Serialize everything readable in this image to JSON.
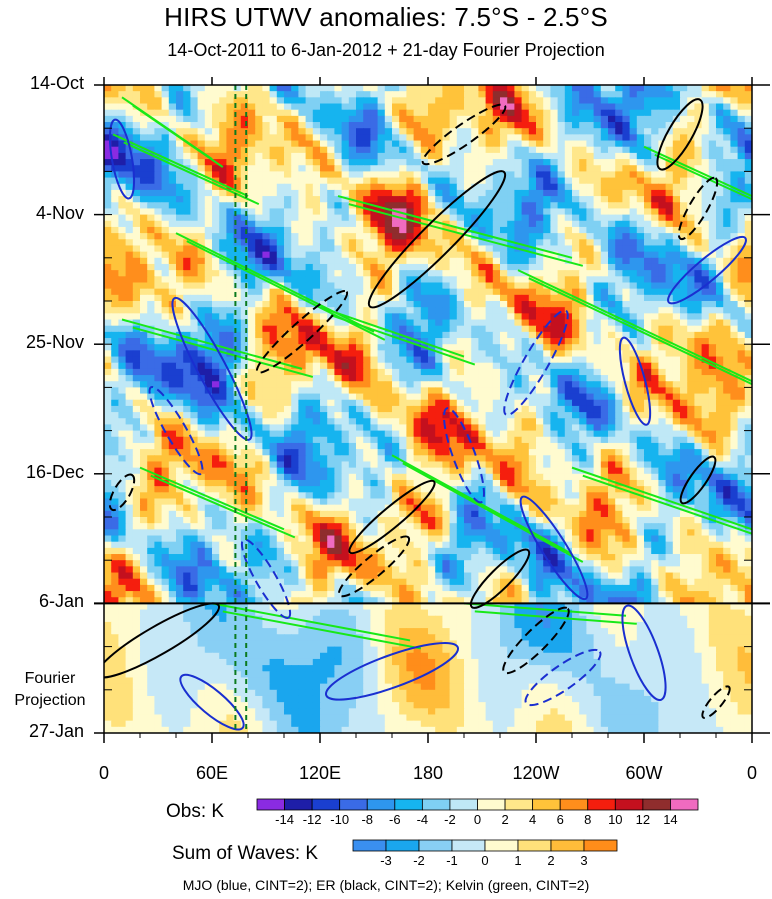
{
  "chart_data": {
    "type": "heatmap",
    "title": "HIRS UTWV anomalies: 7.5°S - 2.5°S",
    "subtitle": "14-Oct-2011 to 6-Jan-2012 + 21-day Fourier Projection",
    "y_tick_labels": [
      "14-Oct",
      "4-Nov",
      "25-Nov",
      "16-Dec",
      "6-Jan",
      "27-Jan"
    ],
    "y_ticks_days": [
      0,
      21,
      42,
      63,
      84,
      105
    ],
    "ylim_days": [
      0,
      105
    ],
    "projection_start_day": 84,
    "projection_label": [
      "Fourier",
      "Projection"
    ],
    "x_tick_labels": [
      "0",
      "60E",
      "120E",
      "180",
      "120W",
      "60W",
      "0"
    ],
    "x_ticks_lon": [
      0,
      60,
      120,
      180,
      240,
      300,
      360
    ],
    "xlim_lon": [
      0,
      360
    ],
    "reference_lines_lon": [
      73,
      79
    ],
    "obs_colorbar": {
      "label": "Obs: K",
      "levels": [
        "-14",
        "-12",
        "-10",
        "-8",
        "-6",
        "-4",
        "-2",
        "0",
        "2",
        "4",
        "6",
        "8",
        "10",
        "12",
        "14"
      ],
      "colors": [
        "#8a2be2",
        "#1e1ea8",
        "#1a3fd0",
        "#3a6be6",
        "#2e96ee",
        "#16b4ef",
        "#7fd0f3",
        "#bfe8f6",
        "#fffbcf",
        "#ffe78a",
        "#ffc33a",
        "#ff8e1c",
        "#f51e0e",
        "#c4101e",
        "#8f2d2d",
        "#f06bc0"
      ]
    },
    "waves_colorbar": {
      "label": "Sum of Waves: K",
      "levels": [
        "-3",
        "-2",
        "-1",
        "0",
        "1",
        "2",
        "3"
      ],
      "colors": [
        "#3a8ff0",
        "#1aa6ee",
        "#88cff4",
        "#c6e8f7",
        "#fffbcf",
        "#ffe17a",
        "#ffbd3a",
        "#ff8d1a"
      ]
    },
    "contour_series": [
      {
        "name": "MJO",
        "color": "blue",
        "cint": 2
      },
      {
        "name": "ER",
        "color": "black",
        "cint": 2
      },
      {
        "name": "Kelvin",
        "color": "green",
        "cint": 2
      }
    ],
    "footnote": "MJO (blue, CINT=2); ER (black, CINT=2); Kelvin (green, CINT=2)"
  },
  "colors": {
    "mjo": "#1a2fd0",
    "er": "#000000",
    "kelvin": "#18e818",
    "reference": "#0b7a1e"
  }
}
